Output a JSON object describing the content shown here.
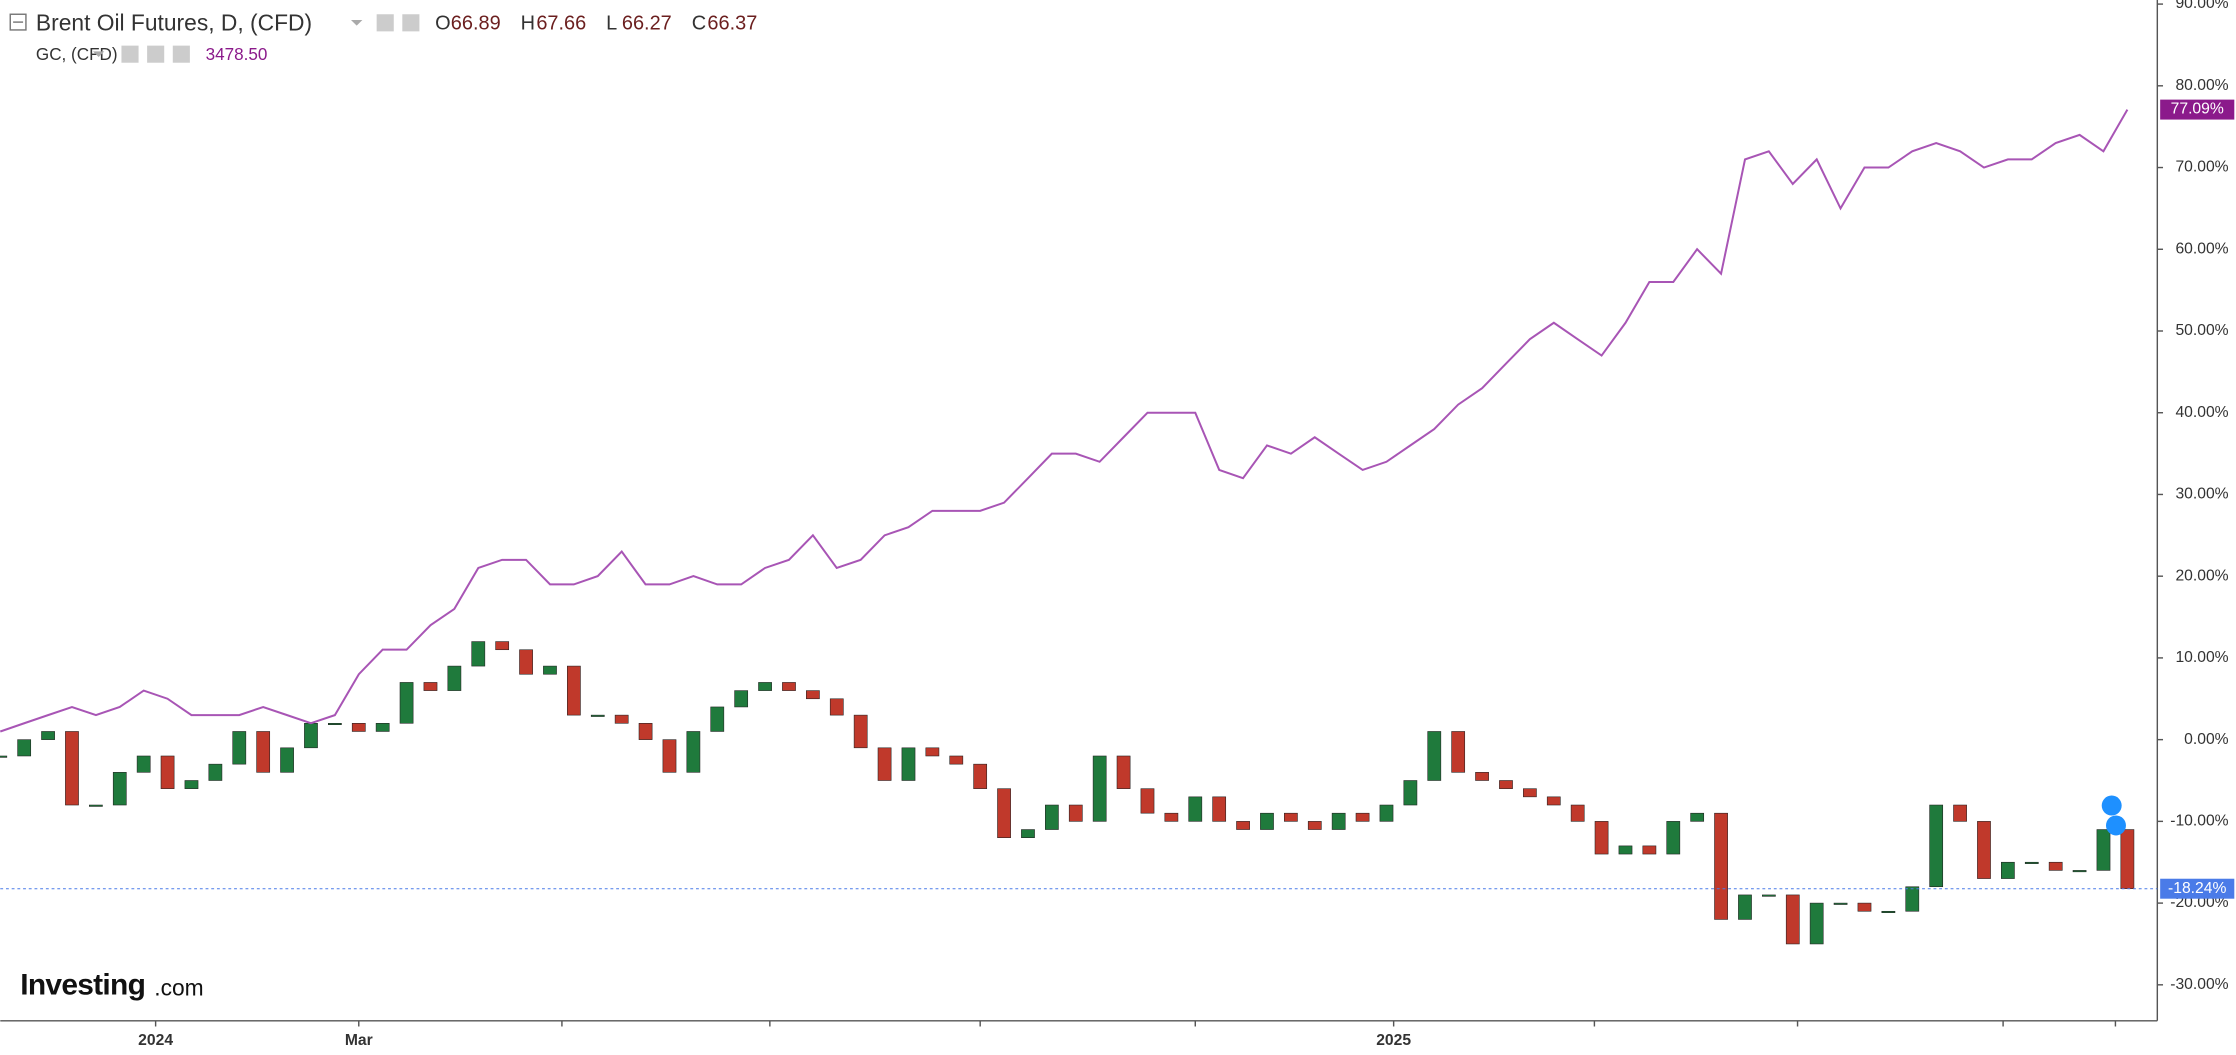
{
  "chart_data": {
    "type": "candlestick-line",
    "series": [
      {
        "name": "Brent Oil Futures, D, (CFD)",
        "type": "candlestick",
        "up_color": "#1f7a3c",
        "down_color": "#c0392b",
        "ohlc": [
          {
            "name": "O",
            "value": 66.89
          },
          {
            "name": "H",
            "value": 67.66
          },
          {
            "name": "L",
            "value": 66.27
          },
          {
            "name": "C",
            "value": 66.37
          }
        ],
        "end_label": "-18.24%",
        "end_color": "#4a7be8",
        "values": [
          -2,
          0,
          1,
          -8,
          -8,
          -4,
          -2,
          -6,
          -5,
          -3,
          1,
          -4,
          -1,
          2,
          2,
          1,
          2,
          7,
          6,
          9,
          12,
          11,
          8,
          9,
          3,
          3,
          2,
          0,
          -4,
          1,
          4,
          6,
          7,
          6,
          5,
          3,
          -1,
          -5,
          -1,
          -2,
          -3,
          -6,
          -12,
          -11,
          -8,
          -10,
          -2,
          -6,
          -9,
          -10,
          -7,
          -10,
          -11,
          -9,
          -10,
          -11,
          -9,
          -10,
          -8,
          -5,
          1,
          -4,
          -5,
          -6,
          -7,
          -8,
          -10,
          -14,
          -13,
          -14,
          -10,
          -9,
          -22,
          -19,
          -19,
          -25,
          -20,
          -20,
          -21,
          -21,
          -18,
          -8,
          -10,
          -17,
          -15,
          -15,
          -16,
          -16,
          -11,
          -18.24
        ]
      },
      {
        "name": "GC, (CFD)",
        "type": "line",
        "color": "#a855b5",
        "price": {
          "value": 3478.5,
          "label": "3478.50"
        },
        "end_label": "77.09%",
        "end_color": "#8b1a8b",
        "values": [
          1,
          2,
          3,
          4,
          3,
          4,
          6,
          5,
          3,
          3,
          3,
          4,
          3,
          2,
          3,
          8,
          11,
          11,
          14,
          16,
          21,
          22,
          22,
          19,
          19,
          20,
          23,
          19,
          19,
          20,
          19,
          19,
          21,
          22,
          25,
          21,
          22,
          25,
          26,
          28,
          28,
          28,
          29,
          32,
          35,
          35,
          34,
          37,
          40,
          40,
          40,
          33,
          32,
          36,
          35,
          37,
          35,
          33,
          34,
          36,
          38,
          41,
          43,
          46,
          49,
          51,
          49,
          47,
          51,
          56,
          56,
          60,
          57,
          71,
          72,
          68,
          71,
          65,
          70,
          70,
          72,
          73,
          72,
          70,
          71,
          71,
          73,
          74,
          72,
          77.09
        ]
      }
    ],
    "xlim": [
      0,
      89
    ],
    "xticks": [
      {
        "value": 6.5,
        "label": "2024"
      },
      {
        "value": 15,
        "label": "Mar"
      },
      23.5,
      32.2,
      41,
      50,
      {
        "value": 58.3,
        "label": "2025"
      },
      66.7,
      75.2,
      83.8,
      88.5
    ],
    "ylim": [
      -34.4,
      90.5
    ],
    "yticks": [
      {
        "value": 90,
        "label": "90.00%"
      },
      {
        "value": 80,
        "label": "80.00%"
      },
      {
        "value": 70,
        "label": "70.00%"
      },
      {
        "value": 60,
        "label": "60.00%"
      },
      {
        "value": 50,
        "label": "50.00%"
      },
      {
        "value": 40,
        "label": "40.00%"
      },
      {
        "value": 30,
        "label": "30.00%"
      },
      {
        "value": 20,
        "label": "20.00%"
      },
      {
        "value": 10,
        "label": "10.00%"
      },
      {
        "value": 0,
        "label": "0.00%"
      },
      {
        "value": -10,
        "label": "-10.00%"
      },
      {
        "value": -20,
        "label": "-20.00%"
      },
      {
        "value": -30,
        "label": "-30.00%"
      }
    ],
    "watermark": "Investing",
    "watermark_suffix": ".com"
  }
}
